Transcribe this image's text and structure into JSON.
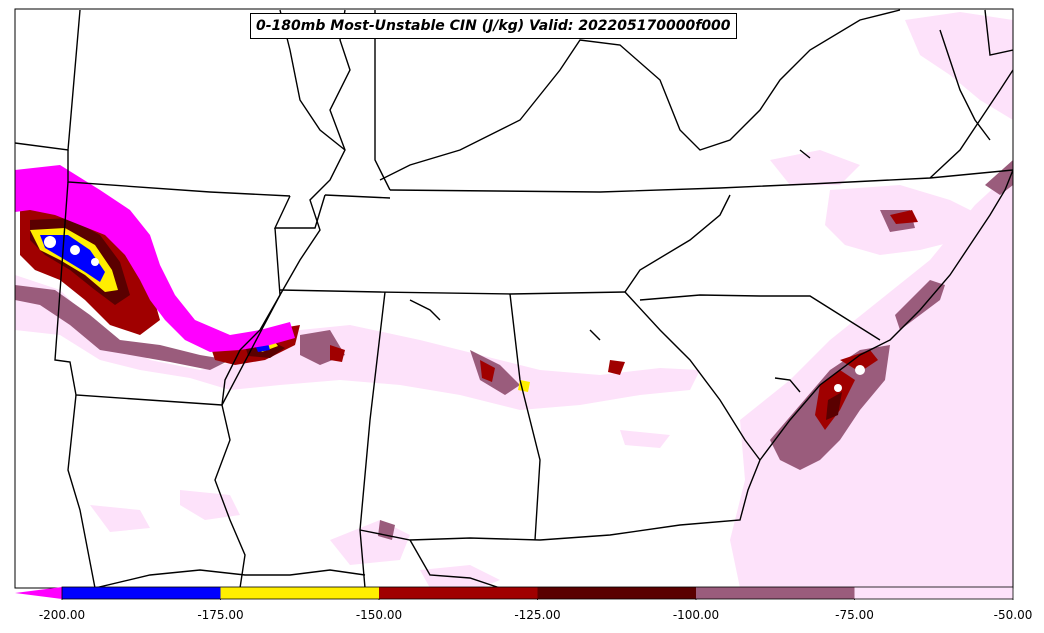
{
  "title": "0-180mb Most-Unstable CIN (J/kg) Valid: 202205170000f000",
  "colorbar": {
    "ticks": [
      "-200.00",
      "-175.00",
      "-150.00",
      "-125.00",
      "-100.00",
      "-75.00",
      "-50.00"
    ],
    "bins": [
      {
        "from": -200,
        "to": -175,
        "color": "#0000ff"
      },
      {
        "from": -175,
        "to": -150,
        "color": "#ffee00"
      },
      {
        "from": -150,
        "to": -125,
        "color": "#a00000"
      },
      {
        "from": -125,
        "to": -100,
        "color": "#5a0000"
      },
      {
        "from": -100,
        "to": -75,
        "color": "#9a5c7c"
      },
      {
        "from": -75,
        "to": -50,
        "color": "#fde2fa"
      }
    ],
    "under_color": "#ff00ff"
  },
  "colors": {
    "under": "#ff00ff",
    "very_strong": "#0000ff",
    "strong": "#ffee00",
    "moderate": "#a00000",
    "moderate_dark": "#5a0000",
    "weak": "#9a5c7c",
    "very_weak": "#fde2fa",
    "border": "#000000"
  }
}
